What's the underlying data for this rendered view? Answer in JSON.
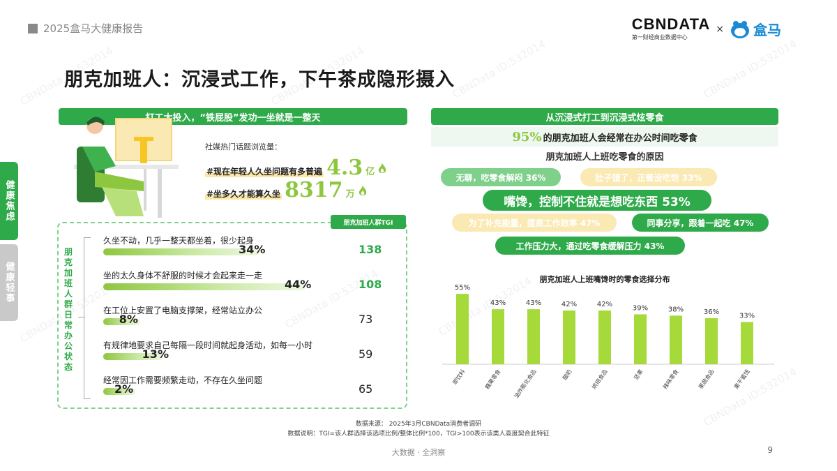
{
  "header": {
    "report_title": "2025盒马大健康报告",
    "logo_cbn": "CBNDATA",
    "logo_cbn_sub": "第一财经商业数据中心",
    "logo_times": "×",
    "logo_hema": "盒马"
  },
  "main_title": "朋克加班人：沉浸式工作，下午茶成隐形摄入",
  "side_tabs": [
    "健康焦虑",
    "健康轻事"
  ],
  "left": {
    "banner": "打工太投入，“铁屁股”发功一坐就是一整天",
    "social_label": "社媒热门话题浏览量：",
    "topics": [
      {
        "tag": "#现在年轻人久坐问题有多普遍",
        "num": "4.3",
        "unit": "亿"
      },
      {
        "tag": "#坐多久才能算久坐",
        "num": "8317",
        "unit": "万"
      }
    ],
    "tgi_tag": "朋克加班人群TGI",
    "state_label": "朋克加班人群日常办公状态",
    "items": [
      {
        "text": "久坐不动，几乎一整天都坐着，很少起身",
        "pct": "34%",
        "value": 34,
        "tgi": "138",
        "highlight": true
      },
      {
        "text": "坐的太久身体不舒服的时候才会起来走一走",
        "pct": "44%",
        "value": 44,
        "tgi": "108",
        "highlight": true
      },
      {
        "text": "在工位上安置了电脑支撑架，经常站立办公",
        "pct": "8%",
        "value": 8,
        "tgi": "73",
        "highlight": false
      },
      {
        "text": "有规律地要求自己每隔一段时间就起身活动，如每一小时",
        "pct": "13%",
        "value": 13,
        "tgi": "59",
        "highlight": false
      },
      {
        "text": "经常因工作需要频繁走动，不存在久坐问题",
        "pct": "2%",
        "value": 2,
        "tgi": "65",
        "highlight": false
      }
    ]
  },
  "right": {
    "banner": "从沉浸式打工到沉浸式炫零食",
    "headline_pct": "95%",
    "headline_text": "的朋克加班人会经常在办公时间吃零食",
    "sub_heading": "朋克加班人上班吃零食的原因",
    "reasons": [
      "无聊，吃零食解闷 36%",
      "肚子饿了，正餐没吃饱 33%",
      "嘴馋，控制不住就是想吃东西 53%",
      "为了补充能量，提高工作效率 47%",
      "同事分享，跟着一起吃 47%",
      "工作压力大，通过吃零食缓解压力 43%"
    ],
    "chart_title": "朋克加班人上班嘴馋时的零食选择分布"
  },
  "chart_data": {
    "type": "bar",
    "title": "朋克加班人上班嘴馋时的零食选择分布",
    "categories": [
      "即饮料",
      "糖果零食",
      "油炸膨化食品",
      "酸奶",
      "烘焙食品",
      "坚果",
      "辣味零食",
      "果蔬食品",
      "果干蜜饯"
    ],
    "values": [
      55,
      43,
      43,
      42,
      42,
      39,
      38,
      36,
      33
    ],
    "labels": [
      "55%",
      "43%",
      "43%",
      "42%",
      "42%",
      "39%",
      "38%",
      "36%",
      "33%"
    ],
    "ylim": [
      0,
      60
    ],
    "color": "#a6d93a"
  },
  "source": {
    "line1": "数据来源： 2025年3月CBNData消费者调研",
    "line2": "数据说明：TGI=该人群选择该选项比例/整体比例*100，TGI>100表示该类人高度契合此特征"
  },
  "footer": {
    "center": "大数据 · 全洞察",
    "page": "9"
  },
  "watermark": "CBNData ID:532014"
}
